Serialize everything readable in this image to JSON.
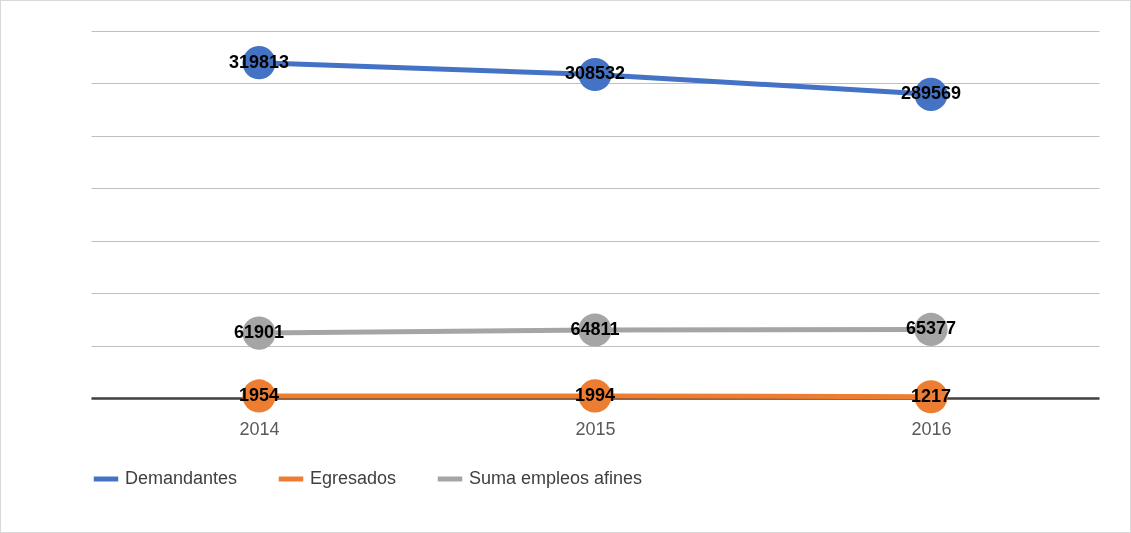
{
  "chart_data": {
    "type": "line",
    "categories": [
      "2014",
      "2015",
      "2016"
    ],
    "series": [
      {
        "name": "Demandantes",
        "color": "#4472c4",
        "values": [
          319813,
          308532,
          289569
        ]
      },
      {
        "name": "Egresados",
        "color": "#ed7d31",
        "values": [
          1954,
          1994,
          1217
        ]
      },
      {
        "name": "Suma empleos afines",
        "color": "#a5a5a5",
        "values": [
          61901,
          64811,
          65377
        ]
      }
    ],
    "ylim": [
      0,
      350000
    ],
    "yticks": [
      {
        "value": 0,
        "label": null
      },
      {
        "value": 50000,
        "label": null
      },
      {
        "value": 100000,
        "label": null
      },
      {
        "value": 150000,
        "label": null
      },
      {
        "value": 200000,
        "label": null
      },
      {
        "value": 250000,
        "label": null
      },
      {
        "value": 300000,
        "label": null
      },
      {
        "value": 350000,
        "label": null
      }
    ],
    "tick_labels": "x",
    "grid": "y",
    "legend": "bottom",
    "marker": "circle",
    "line_style": "solid",
    "data_labels": true
  }
}
